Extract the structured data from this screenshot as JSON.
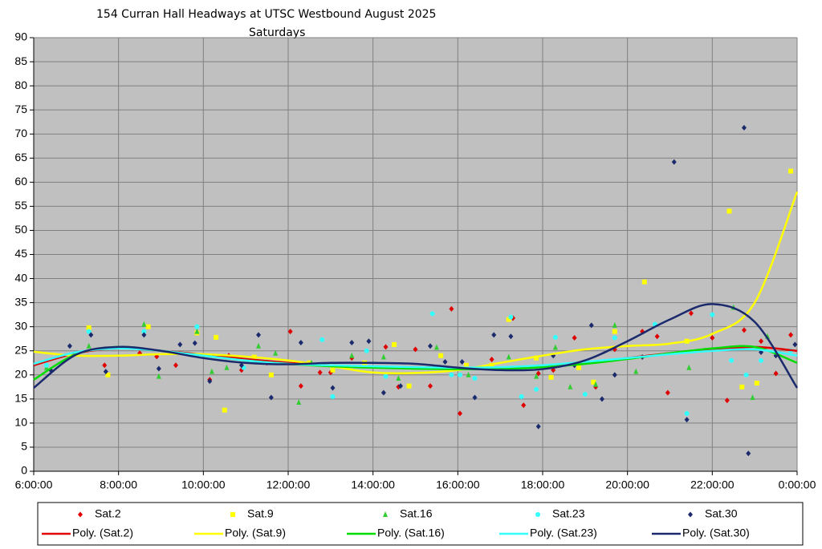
{
  "chart_data": {
    "type": "scatter",
    "title": "154 Curran Hall Headways at UTSC Westbound August 2025",
    "subtitle": "Saturdays",
    "xlim": [
      6,
      24
    ],
    "ylim": [
      0,
      90
    ],
    "xticks": [
      {
        "value": 6,
        "label": "6:00:00"
      },
      {
        "value": 8,
        "label": "8:00:00"
      },
      {
        "value": 10,
        "label": "10:00:00"
      },
      {
        "value": 12,
        "label": "12:00:00"
      },
      {
        "value": 14,
        "label": "14:00:00"
      },
      {
        "value": 16,
        "label": "16:00:00"
      },
      {
        "value": 18,
        "label": "18:00:00"
      },
      {
        "value": 20,
        "label": "20:00:00"
      },
      {
        "value": 22,
        "label": "22:00:00"
      },
      {
        "value": 24,
        "label": "0:00:00"
      }
    ],
    "yticks": [
      0,
      5,
      10,
      15,
      20,
      25,
      30,
      35,
      40,
      45,
      50,
      55,
      60,
      65,
      70,
      75,
      80,
      85,
      90
    ],
    "grid": true,
    "legend": "bottom",
    "series": [
      {
        "name": "Sat.2",
        "color": "#e00000",
        "marker": "diamond",
        "x": [
          7.67,
          8.5,
          8.9,
          9.35,
          10.15,
          10.6,
          10.9,
          11.5,
          12.05,
          12.3,
          12.75,
          13.0,
          13.5,
          14.3,
          14.6,
          15.0,
          15.35,
          15.85,
          16.05,
          16.8,
          17.3,
          17.55,
          17.9,
          18.25,
          18.75,
          19.25,
          19.7,
          20.35,
          20.7,
          20.95,
          21.5,
          22.0,
          22.35,
          22.75,
          23.15,
          23.5,
          23.85
        ],
        "values": [
          22,
          24.5,
          23.8,
          22,
          19,
          24,
          21,
          22.5,
          29,
          17.7,
          20.5,
          20.5,
          23.5,
          25.8,
          17.5,
          25.3,
          17.7,
          33.7,
          12,
          23.2,
          31.8,
          13.7,
          20.3,
          21,
          27.7,
          17.5,
          25.3,
          29,
          28,
          16.3,
          32.8,
          27.7,
          14.7,
          29.3,
          27,
          20.3,
          28.3
        ]
      },
      {
        "name": "Sat.9",
        "color": "#ffff00",
        "marker": "square",
        "x": [
          7.3,
          7.75,
          8.7,
          9.85,
          10.3,
          10.5,
          11.2,
          11.6,
          12.5,
          13.05,
          13.8,
          14.5,
          14.85,
          15.6,
          16.2,
          16.8,
          17.2,
          17.85,
          18.2,
          18.85,
          19.2,
          19.7,
          20.4,
          21.4,
          22.4,
          22.7,
          23.05,
          23.85
        ],
        "values": [
          29.8,
          20,
          30,
          28.7,
          27.8,
          12.7,
          23.7,
          20,
          22.5,
          21,
          22.5,
          26.3,
          17.7,
          24,
          22,
          22,
          31.5,
          23.5,
          19.5,
          21.5,
          18.5,
          29,
          39.3,
          27,
          54,
          17.5,
          18.3,
          62.3
        ]
      },
      {
        "name": "Sat.16",
        "color": "#33cc33",
        "marker": "triangle",
        "x": [
          6.3,
          7.3,
          8.6,
          8.95,
          9.85,
          10.2,
          10.55,
          11.3,
          11.7,
          12.25,
          12.55,
          13.5,
          14.25,
          14.6,
          15.5,
          16.25,
          17.2,
          17.85,
          18.3,
          18.65,
          19.25,
          19.7,
          20.2,
          21.45,
          22.5,
          22.95,
          23.3
        ],
        "values": [
          21.5,
          26,
          30.5,
          19.7,
          29,
          20.7,
          21.5,
          26,
          24.5,
          14.3,
          22.5,
          24,
          23.7,
          19.3,
          25.7,
          20,
          23.7,
          19.7,
          25.7,
          17.5,
          18,
          30.3,
          20.7,
          21.5,
          34,
          15.3,
          28
        ]
      },
      {
        "name": "Sat.23",
        "color": "#33ffff",
        "marker": "circle",
        "x": [
          6.3,
          7.3,
          8.6,
          9.85,
          10.95,
          12.8,
          13.05,
          13.85,
          14.3,
          15.4,
          15.85,
          16.05,
          16.4,
          17.25,
          17.5,
          17.85,
          18.3,
          19.0,
          19.7,
          20.65,
          21.4,
          22.0,
          22.45,
          22.8,
          23.15,
          23.85
        ],
        "values": [
          22,
          29,
          29,
          30,
          21.5,
          27.3,
          15.5,
          25,
          19.7,
          32.7,
          20,
          20,
          19.3,
          32,
          15.5,
          17,
          27.8,
          16,
          27.7,
          30.5,
          12,
          32.5,
          23,
          20,
          23,
          25
        ]
      },
      {
        "name": "Sat.30",
        "color": "#1a2a6c",
        "marker": "diamond",
        "x": [
          6.4,
          6.85,
          7.35,
          7.7,
          8.6,
          8.95,
          9.45,
          9.8,
          10.15,
          10.9,
          11.3,
          11.6,
          12.3,
          13.05,
          13.5,
          13.9,
          14.25,
          14.65,
          15.35,
          15.7,
          16.1,
          16.4,
          16.85,
          17.25,
          17.9,
          18.25,
          18.75,
          19.15,
          19.4,
          19.7,
          20.35,
          21.1,
          21.4,
          22.75,
          22.85,
          23.15,
          23.5,
          23.95
        ],
        "values": [
          21,
          26,
          28.3,
          20.7,
          28.3,
          21.3,
          26.3,
          26.6,
          18.7,
          22,
          28.3,
          15.3,
          26.7,
          17.3,
          26.7,
          27,
          16.3,
          17.7,
          26,
          22.7,
          22.7,
          15.3,
          28.3,
          28,
          9.3,
          24,
          22,
          30.3,
          15,
          20,
          23.7,
          64.2,
          10.7,
          71.3,
          3.7,
          24.7,
          24,
          26.3
        ]
      }
    ],
    "trendlines": [
      {
        "name": "Poly. (Sat.2)",
        "color": "#e00000",
        "x": [
          6,
          7,
          8,
          9,
          10,
          11,
          12,
          13,
          14,
          15,
          16,
          17,
          18,
          19,
          20,
          21,
          22,
          23,
          24
        ],
        "values": [
          22,
          24.5,
          25.5,
          25,
          24.2,
          23.3,
          22.5,
          22,
          21.7,
          21.6,
          21.5,
          21.5,
          21.8,
          22.5,
          23.5,
          24.5,
          25.2,
          25.8,
          25
        ]
      },
      {
        "name": "Poly. (Sat.9)",
        "color": "#ffff00",
        "x": [
          6,
          7,
          8,
          9,
          10,
          11,
          12,
          13,
          14,
          15,
          16,
          17,
          18,
          19,
          20,
          21,
          22,
          23,
          24
        ],
        "values": [
          24.8,
          24,
          24,
          24.3,
          24.3,
          23.8,
          23,
          21.8,
          20.5,
          20.4,
          21,
          22.5,
          24,
          25.3,
          26,
          26.5,
          28.5,
          35,
          58
        ]
      },
      {
        "name": "Poly. (Sat.16)",
        "color": "#00dd00",
        "x": [
          6,
          7,
          8,
          9,
          10,
          11,
          12,
          13,
          14,
          15,
          16,
          17,
          18,
          19,
          20,
          21,
          22,
          23,
          24
        ],
        "values": [
          19,
          24.3,
          25.8,
          25,
          24,
          23,
          22.3,
          21.8,
          21.5,
          21.3,
          21.2,
          21.2,
          21.6,
          22.3,
          23.3,
          24.5,
          25.5,
          25.8,
          22.5
        ]
      },
      {
        "name": "Poly. (Sat.23)",
        "color": "#33ffff",
        "x": [
          6,
          7,
          8,
          9,
          10,
          11,
          12,
          13,
          14,
          15,
          16,
          17,
          18,
          19,
          20,
          21,
          22,
          23,
          24
        ],
        "values": [
          22.3,
          24.7,
          25.5,
          25,
          24,
          23,
          22.3,
          22,
          21.8,
          21.6,
          21.5,
          21.6,
          22,
          22.7,
          23.5,
          24.3,
          25,
          25.3,
          24
        ]
      },
      {
        "name": "Poly. (Sat.30)",
        "color": "#1a2a6c",
        "x": [
          6,
          7,
          8,
          9,
          10,
          11,
          12,
          13,
          14,
          15,
          16,
          17,
          18,
          19,
          20,
          21,
          22,
          23,
          24
        ],
        "values": [
          17.3,
          24.2,
          25.8,
          25,
          23.5,
          22.5,
          22.2,
          22.5,
          22.5,
          22.3,
          21.5,
          21,
          21.2,
          23,
          27,
          31.5,
          34.7,
          31,
          17.3
        ]
      }
    ]
  }
}
